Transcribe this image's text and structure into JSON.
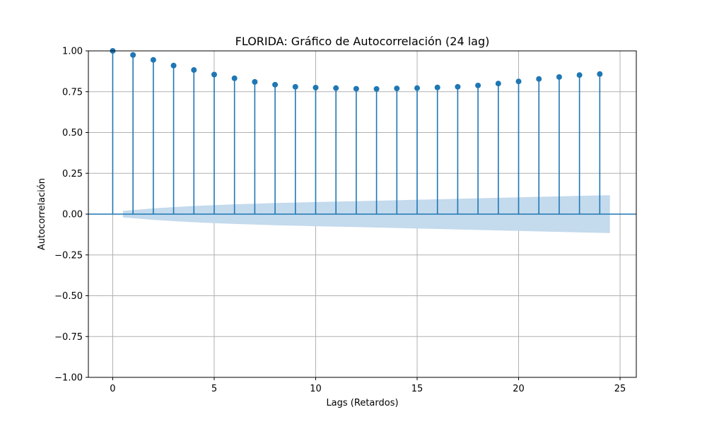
{
  "chart_data": {
    "type": "stem",
    "title": "FLORIDA: Gráfico de Autocorrelación (24 lag)",
    "xlabel": "Lags (Retardos)",
    "ylabel": "Autocorrelación",
    "xlim": [
      -1.2,
      25.8
    ],
    "ylim": [
      -1.0,
      1.0
    ],
    "xticks": [
      0,
      5,
      10,
      15,
      20,
      25
    ],
    "yticks": [
      -1.0,
      -0.75,
      -0.5,
      -0.25,
      0.0,
      0.25,
      0.5,
      0.75,
      1.0
    ],
    "ytick_labels": [
      "−1.00",
      "−0.75",
      "−0.50",
      "−0.25",
      "0.00",
      "0.25",
      "0.50",
      "0.75",
      "1.00"
    ],
    "grid": true,
    "colors": {
      "series": "#1f77b4",
      "confidence": "#c4daed"
    },
    "lags": [
      0,
      1,
      2,
      3,
      4,
      5,
      6,
      7,
      8,
      9,
      10,
      11,
      12,
      13,
      14,
      15,
      16,
      17,
      18,
      19,
      20,
      21,
      22,
      23,
      24
    ],
    "acf": [
      1.0,
      0.975,
      0.945,
      0.91,
      0.883,
      0.855,
      0.832,
      0.81,
      0.793,
      0.78,
      0.775,
      0.772,
      0.768,
      0.767,
      0.77,
      0.772,
      0.776,
      0.78,
      0.788,
      0.8,
      0.813,
      0.828,
      0.84,
      0.852,
      0.858
    ],
    "confidence_band": {
      "x": [
        0.5,
        1,
        2,
        3,
        4,
        5,
        6,
        7,
        8,
        9,
        10,
        11,
        12,
        13,
        14,
        15,
        16,
        17,
        18,
        19,
        20,
        21,
        22,
        23,
        24,
        24.5
      ],
      "upper": [
        0.02,
        0.025,
        0.035,
        0.043,
        0.05,
        0.055,
        0.06,
        0.064,
        0.068,
        0.071,
        0.074,
        0.077,
        0.079,
        0.082,
        0.085,
        0.088,
        0.091,
        0.094,
        0.097,
        0.1,
        0.103,
        0.106,
        0.109,
        0.112,
        0.115,
        0.116
      ]
    }
  }
}
